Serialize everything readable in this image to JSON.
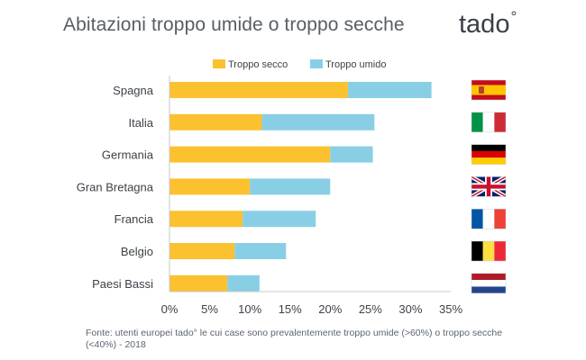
{
  "title": "Abitazioni troppo umide o troppo secche",
  "logo": {
    "text": "tado",
    "mark": "°"
  },
  "source": "Fonte: utenti europei tado° le cui case sono prevalentemente troppo umide (>60%) o troppo secche (<40%) - 2018",
  "colors": {
    "secco": "#FCC12E",
    "umido": "#88CFE6",
    "axis": "#c8c8c8"
  },
  "chart_data": {
    "type": "bar",
    "orientation": "horizontal",
    "stacked": true,
    "categories": [
      "Spagna",
      "Italia",
      "Germania",
      "Gran Bretagna",
      "Francia",
      "Belgio",
      "Paesi Bassi"
    ],
    "series": [
      {
        "name": "Troppo secco",
        "values": [
          22.2,
          11.5,
          20.0,
          10.0,
          9.1,
          8.1,
          7.2
        ]
      },
      {
        "name": "Troppo umido",
        "values": [
          10.4,
          14.0,
          5.3,
          10.0,
          9.1,
          6.4,
          4.0
        ]
      }
    ],
    "xlim": [
      0,
      35
    ],
    "xticks": [
      0,
      5,
      10,
      15,
      20,
      25,
      30,
      35
    ],
    "xtick_labels": [
      "0%",
      "5%",
      "10%",
      "15%",
      "20%",
      "25%",
      "30%",
      "35%"
    ],
    "legend_position": "top",
    "grid": false,
    "flags": [
      "spain-flag",
      "italy-flag",
      "germany-flag",
      "uk-flag",
      "france-flag",
      "belgium-flag",
      "netherlands-flag"
    ]
  }
}
